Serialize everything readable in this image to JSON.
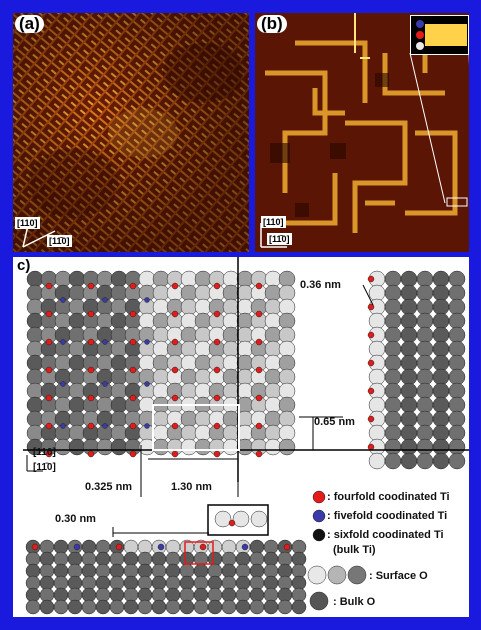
{
  "panels": {
    "a": {
      "label": "(a)",
      "dir_1": "[110]",
      "dir_2": "[11̄0]"
    },
    "b": {
      "label": "(b)",
      "dir_1": "[110]",
      "dir_2": "[11̄0]"
    },
    "c": {
      "label": "c)"
    }
  },
  "annotations": {
    "d_036": "0.36 nm",
    "d_065": "0.65 nm",
    "d_0325": "0.325 nm",
    "d_130": "1.30 nm",
    "d_030": "0.30 nm",
    "dir_1": "[110]",
    "dir_2": "[11̄0]"
  },
  "legend": [
    {
      "text": ": fourfold coodinated Ti",
      "color": "#e21b1b"
    },
    {
      "text": ": fivefold coodinated Ti",
      "color": "#3a3aa8"
    },
    {
      "text": ": sixfold coodinated Ti",
      "color": "#111111"
    },
    {
      "text": "(bulk Ti)",
      "color": ""
    },
    {
      "text": ": Surface O",
      "color": "#e8e8e8"
    },
    {
      "text": ": Bulk O",
      "color": "#555555"
    }
  ],
  "colors": {
    "frame": "#1a1adf",
    "stm_dark": "#2a0800",
    "stm_bright": "#ffd24a"
  }
}
